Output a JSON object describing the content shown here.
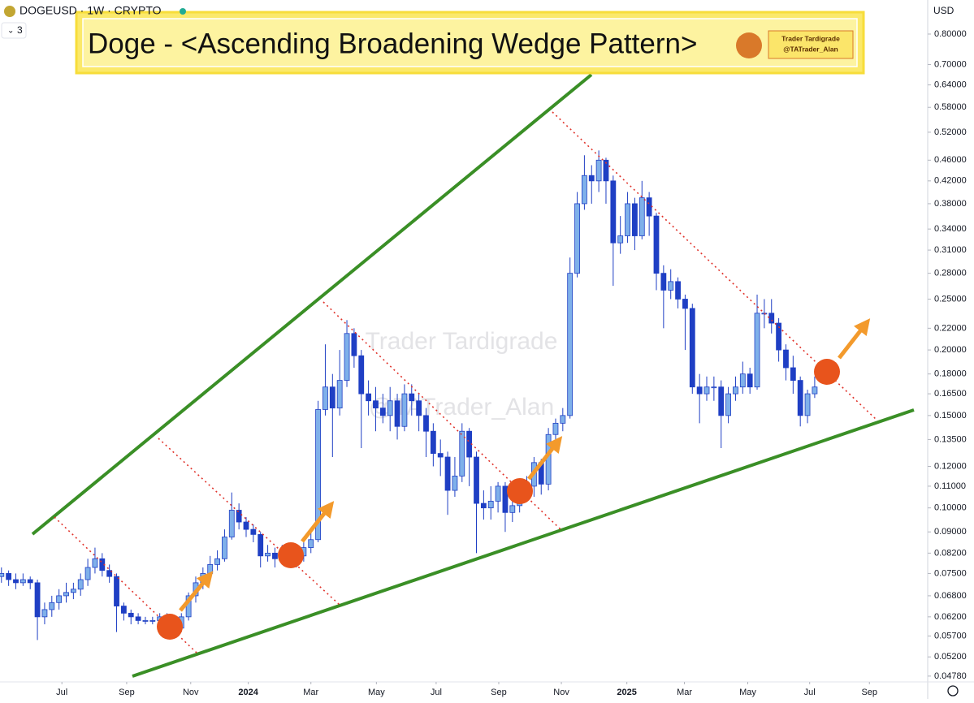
{
  "header": {
    "symbol": "DOGEUSD · 1W · CRYPTO",
    "indicator_count": "3",
    "currency": "USD"
  },
  "chart_data": {
    "type": "candlestick",
    "title": "Doge - <Ascending Broadening Wedge Pattern>",
    "badge": [
      "Trader Tardigrade",
      "@TATrader_Alan"
    ],
    "watermark": [
      "Trader Tardigrade",
      "@TATrader_Alan"
    ],
    "y_scale": "log",
    "ylim": [
      0.0466,
      0.929
    ],
    "yticks": [
      {
        "value": 0.8,
        "label": "0.80000"
      },
      {
        "value": 0.7,
        "label": "0.70000"
      },
      {
        "value": 0.64,
        "label": "0.64000"
      },
      {
        "value": 0.58,
        "label": "0.58000"
      },
      {
        "value": 0.52,
        "label": "0.52000"
      },
      {
        "value": 0.46,
        "label": "0.46000"
      },
      {
        "value": 0.42,
        "label": "0.42000"
      },
      {
        "value": 0.38,
        "label": "0.38000"
      },
      {
        "value": 0.34,
        "label": "0.34000"
      },
      {
        "value": 0.31,
        "label": "0.31000"
      },
      {
        "value": 0.28,
        "label": "0.28000"
      },
      {
        "value": 0.25,
        "label": "0.25000"
      },
      {
        "value": 0.22,
        "label": "0.22000"
      },
      {
        "value": 0.2,
        "label": "0.20000"
      },
      {
        "value": 0.18,
        "label": "0.18000"
      },
      {
        "value": 0.165,
        "label": "0.16500"
      },
      {
        "value": 0.15,
        "label": "0.15000"
      },
      {
        "value": 0.135,
        "label": "0.13500"
      },
      {
        "value": 0.12,
        "label": "0.12000"
      },
      {
        "value": 0.11,
        "label": "0.11000"
      },
      {
        "value": 0.1,
        "label": "0.10000"
      },
      {
        "value": 0.09,
        "label": "0.09000"
      },
      {
        "value": 0.082,
        "label": "0.08200"
      },
      {
        "value": 0.075,
        "label": "0.07500"
      },
      {
        "value": 0.068,
        "label": "0.06800"
      },
      {
        "value": 0.062,
        "label": "0.06200"
      },
      {
        "value": 0.057,
        "label": "0.05700"
      },
      {
        "value": 0.052,
        "label": "0.05200"
      },
      {
        "value": 0.0478,
        "label": "0.04780"
      }
    ],
    "xlim": [
      -0.2,
      128.7
    ],
    "xticks": [
      {
        "value": 8.4,
        "label": "Jul"
      },
      {
        "value": 17.4,
        "label": "Sep"
      },
      {
        "value": 26.3,
        "label": "Nov"
      },
      {
        "value": 34.3,
        "label": "2024"
      },
      {
        "value": 43.0,
        "label": "Mar"
      },
      {
        "value": 52.1,
        "label": "May"
      },
      {
        "value": 60.4,
        "label": "Jul"
      },
      {
        "value": 69.1,
        "label": "Sep"
      },
      {
        "value": 77.8,
        "label": "Nov"
      },
      {
        "value": 86.9,
        "label": "2025"
      },
      {
        "value": 94.9,
        "label": "Mar"
      },
      {
        "value": 103.7,
        "label": "May"
      },
      {
        "value": 112.3,
        "label": "Jul"
      },
      {
        "value": 120.6,
        "label": "Sep"
      }
    ],
    "up_color": "#7fb0ea",
    "down_color": "#1f3fc4",
    "open": [
      0.074,
      0.075,
      0.073,
      0.072,
      0.073,
      0.072,
      0.062,
      0.064,
      0.066,
      0.068,
      0.069,
      0.07,
      0.073,
      0.077,
      0.08,
      0.076,
      0.074,
      0.065,
      0.063,
      0.062,
      0.061,
      0.061,
      0.061,
      0.062,
      0.06,
      0.059,
      0.062,
      0.068,
      0.072,
      0.075,
      0.078,
      0.08,
      0.088,
      0.099,
      0.094,
      0.091,
      0.089,
      0.081,
      0.082,
      0.08,
      0.082,
      0.079,
      0.081,
      0.084,
      0.087,
      0.154,
      0.17,
      0.155,
      0.175,
      0.215,
      0.195,
      0.165,
      0.16,
      0.155,
      0.15,
      0.16,
      0.143,
      0.165,
      0.16,
      0.15,
      0.14,
      0.127,
      0.125,
      0.108,
      0.115,
      0.14,
      0.125,
      0.102,
      0.1,
      0.103,
      0.11,
      0.098,
      0.101,
      0.105,
      0.11,
      0.122,
      0.111,
      0.138,
      0.145,
      0.15,
      0.28,
      0.38,
      0.43,
      0.42,
      0.46,
      0.42,
      0.32,
      0.33,
      0.38,
      0.33,
      0.39,
      0.36,
      0.28,
      0.26,
      0.27,
      0.25,
      0.24,
      0.17,
      0.165,
      0.17,
      0.17,
      0.15,
      0.165,
      0.17,
      0.18,
      0.17,
      0.235,
      0.235,
      0.225,
      0.2,
      0.185,
      0.175,
      0.15,
      0.165
    ],
    "high": [
      0.077,
      0.076,
      0.075,
      0.075,
      0.074,
      0.073,
      0.066,
      0.068,
      0.07,
      0.072,
      0.072,
      0.075,
      0.08,
      0.084,
      0.082,
      0.078,
      0.075,
      0.066,
      0.064,
      0.063,
      0.062,
      0.062,
      0.063,
      0.063,
      0.061,
      0.063,
      0.069,
      0.074,
      0.077,
      0.081,
      0.083,
      0.091,
      0.107,
      0.102,
      0.096,
      0.093,
      0.09,
      0.085,
      0.084,
      0.085,
      0.084,
      0.083,
      0.086,
      0.09,
      0.16,
      0.205,
      0.18,
      0.2,
      0.228,
      0.22,
      0.2,
      0.175,
      0.17,
      0.165,
      0.17,
      0.165,
      0.172,
      0.172,
      0.165,
      0.155,
      0.145,
      0.135,
      0.128,
      0.125,
      0.145,
      0.142,
      0.128,
      0.108,
      0.11,
      0.112,
      0.112,
      0.106,
      0.112,
      0.115,
      0.125,
      0.124,
      0.142,
      0.148,
      0.155,
      0.3,
      0.4,
      0.47,
      0.45,
      0.48,
      0.465,
      0.43,
      0.36,
      0.4,
      0.39,
      0.42,
      0.4,
      0.365,
      0.29,
      0.285,
      0.275,
      0.255,
      0.245,
      0.18,
      0.178,
      0.178,
      0.175,
      0.17,
      0.178,
      0.19,
      0.185,
      0.255,
      0.25,
      0.25,
      0.23,
      0.205,
      0.195,
      0.178,
      0.168,
      0.178
    ],
    "low": [
      0.072,
      0.071,
      0.07,
      0.071,
      0.07,
      0.056,
      0.06,
      0.062,
      0.064,
      0.066,
      0.067,
      0.068,
      0.071,
      0.075,
      0.074,
      0.072,
      0.058,
      0.061,
      0.06,
      0.06,
      0.06,
      0.06,
      0.06,
      0.058,
      0.057,
      0.058,
      0.061,
      0.066,
      0.07,
      0.073,
      0.076,
      0.079,
      0.087,
      0.091,
      0.088,
      0.086,
      0.077,
      0.079,
      0.077,
      0.078,
      0.077,
      0.077,
      0.079,
      0.082,
      0.086,
      0.15,
      0.125,
      0.15,
      0.17,
      0.185,
      0.13,
      0.15,
      0.14,
      0.145,
      0.14,
      0.135,
      0.14,
      0.15,
      0.14,
      0.125,
      0.12,
      0.115,
      0.097,
      0.105,
      0.112,
      0.11,
      0.082,
      0.095,
      0.095,
      0.098,
      0.09,
      0.094,
      0.098,
      0.103,
      0.105,
      0.106,
      0.108,
      0.132,
      0.14,
      0.148,
      0.275,
      0.37,
      0.38,
      0.4,
      0.38,
      0.265,
      0.305,
      0.32,
      0.31,
      0.325,
      0.33,
      0.26,
      0.22,
      0.25,
      0.24,
      0.2,
      0.165,
      0.145,
      0.16,
      0.16,
      0.13,
      0.145,
      0.16,
      0.165,
      0.165,
      0.168,
      0.22,
      0.215,
      0.19,
      0.175,
      0.165,
      0.143,
      0.145,
      0.162
    ],
    "close": [
      0.075,
      0.073,
      0.072,
      0.073,
      0.072,
      0.062,
      0.064,
      0.066,
      0.068,
      0.069,
      0.07,
      0.073,
      0.077,
      0.08,
      0.076,
      0.074,
      0.065,
      0.063,
      0.062,
      0.061,
      0.061,
      0.061,
      0.062,
      0.06,
      0.059,
      0.062,
      0.068,
      0.072,
      0.075,
      0.078,
      0.08,
      0.088,
      0.099,
      0.094,
      0.091,
      0.089,
      0.081,
      0.082,
      0.08,
      0.082,
      0.079,
      0.081,
      0.084,
      0.087,
      0.154,
      0.17,
      0.155,
      0.175,
      0.215,
      0.195,
      0.165,
      0.16,
      0.155,
      0.15,
      0.16,
      0.143,
      0.165,
      0.16,
      0.15,
      0.14,
      0.127,
      0.125,
      0.108,
      0.115,
      0.14,
      0.125,
      0.102,
      0.1,
      0.103,
      0.11,
      0.098,
      0.101,
      0.105,
      0.11,
      0.122,
      0.111,
      0.138,
      0.145,
      0.15,
      0.28,
      0.38,
      0.43,
      0.42,
      0.46,
      0.42,
      0.32,
      0.33,
      0.38,
      0.33,
      0.39,
      0.36,
      0.28,
      0.26,
      0.27,
      0.25,
      0.24,
      0.17,
      0.165,
      0.17,
      0.17,
      0.15,
      0.165,
      0.17,
      0.18,
      0.17,
      0.235,
      0.235,
      0.225,
      0.2,
      0.185,
      0.175,
      0.15,
      0.165,
      0.17
    ]
  }
}
